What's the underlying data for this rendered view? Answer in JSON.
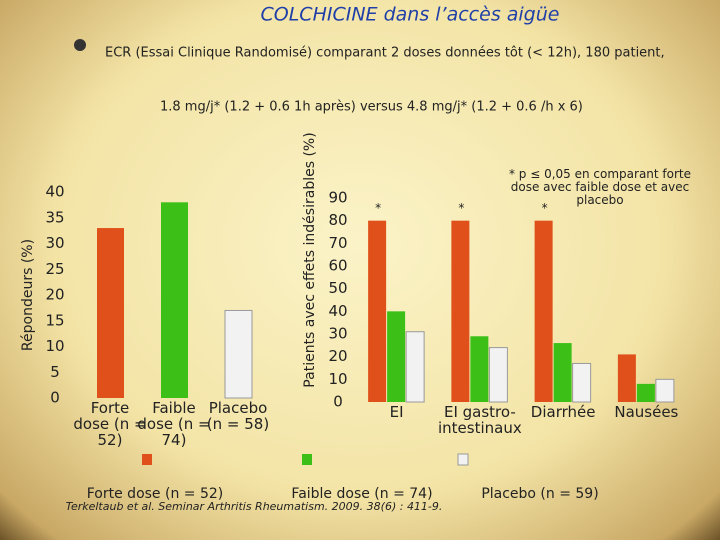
{
  "title": "COLCHICINE dans l’accès aigüe",
  "bullet": [
    "ECR (Essai Clinique Randomisé) comparant 2 doses données tôt (< 12h), 180 patient,",
    "1.8 mg/j* (1.2 + 0.6 1h après) versus 4.8 mg/j* (1.2 + 0.6 /h x 6)"
  ],
  "note": "* p ≤ 0,05 en comparant forte dose avec faible dose et avec placebo",
  "reference": "Terkeltaub et al. Seminar Arthritis Rheumatism. 2009. 38(6) : 411-9.",
  "chart_data": [
    {
      "type": "bar",
      "y_label": "Répondeurs (%)",
      "categories": [
        "Forte dose (n = 52)",
        "Faible dose (n = 74)",
        "Placebo (n = 58)"
      ],
      "values": [
        33,
        38,
        17
      ],
      "colors": [
        "#e0501a",
        "#3cc018",
        "#f2f2f2"
      ],
      "ylim": [
        0,
        40
      ],
      "yticks": [
        0,
        5,
        10,
        15,
        20,
        25,
        30,
        35,
        40
      ]
    },
    {
      "type": "grouped-bar",
      "y_label": "Patients avec effets indésirables (%)",
      "categories": [
        "EI",
        "EI gastro-intestinaux",
        "Diarrhée",
        "Nausées"
      ],
      "series": [
        {
          "name": "Forte dose (n = 52)",
          "color": "#e0501a",
          "values": [
            80,
            80,
            80,
            21
          ]
        },
        {
          "name": "Faible dose (n = 74)",
          "color": "#3cc018",
          "values": [
            40,
            29,
            26,
            8
          ]
        },
        {
          "name": "Placebo (n = 59)",
          "color": "#f2f2f2",
          "values": [
            31,
            24,
            17,
            10
          ]
        }
      ],
      "annotations": [
        "*",
        "*",
        "*"
      ],
      "ylim": [
        0,
        90
      ],
      "yticks": [
        0,
        10,
        20,
        30,
        40,
        50,
        60,
        70,
        80,
        90
      ]
    }
  ]
}
